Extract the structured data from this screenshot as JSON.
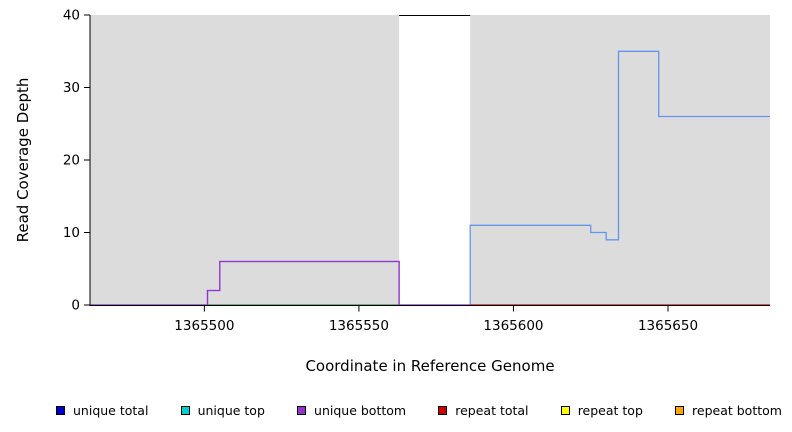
{
  "chart_data": {
    "type": "line",
    "title": "",
    "xlabel": "Coordinate in Reference Genome",
    "ylabel": "Read Coverage Depth",
    "xlim": [
      1365463,
      1365683
    ],
    "ylim": [
      0,
      40
    ],
    "xticks": [
      1365500,
      1365550,
      1365600,
      1365650
    ],
    "yticks": [
      0,
      10,
      20,
      30,
      40
    ],
    "grid": false,
    "legend_position": "bottom",
    "shaded_regions": [
      {
        "x0": 1365463,
        "x1": 1365563,
        "color": "#dcdcdc"
      },
      {
        "x0": 1365586,
        "x1": 1365683,
        "color": "#dcdcdc"
      }
    ],
    "series": [
      {
        "name": "unique total",
        "color": "#6495ED",
        "points": [
          [
            1365463,
            0
          ],
          [
            1365501,
            0
          ],
          [
            1365501,
            2
          ],
          [
            1365505,
            2
          ],
          [
            1365505,
            6
          ],
          [
            1365563,
            6
          ],
          [
            1365563,
            0
          ],
          [
            1365586,
            0
          ],
          [
            1365586,
            11
          ],
          [
            1365625,
            11
          ],
          [
            1365625,
            10
          ],
          [
            1365630,
            10
          ],
          [
            1365630,
            9
          ],
          [
            1365634,
            9
          ],
          [
            1365634,
            35
          ],
          [
            1365647,
            35
          ],
          [
            1365647,
            26
          ],
          [
            1365683,
            26
          ]
        ]
      },
      {
        "name": "unique top",
        "color": "#2E8B57",
        "points": [
          [
            1365501,
            0
          ],
          [
            1365563,
            0
          ]
        ]
      },
      {
        "name": "unique bottom",
        "color": "#9932CC",
        "points": [
          [
            1365463,
            0
          ],
          [
            1365501,
            0
          ],
          [
            1365501,
            2
          ],
          [
            1365505,
            2
          ],
          [
            1365505,
            6
          ],
          [
            1365563,
            6
          ],
          [
            1365563,
            0
          ],
          [
            1365586,
            0
          ]
        ]
      },
      {
        "name": "repeat total",
        "color": "#D80000",
        "points": [
          [
            1365586,
            0
          ],
          [
            1365683,
            0
          ]
        ]
      }
    ]
  },
  "legend": {
    "items": [
      {
        "label": "unique total",
        "color": "#0000CD"
      },
      {
        "label": "unique top",
        "color": "#00CED1"
      },
      {
        "label": "unique bottom",
        "color": "#9932CC"
      },
      {
        "label": "repeat total",
        "color": "#CD0000"
      },
      {
        "label": "repeat top",
        "color": "#FFFF00"
      },
      {
        "label": "repeat bottom",
        "color": "#FFA500"
      }
    ]
  }
}
